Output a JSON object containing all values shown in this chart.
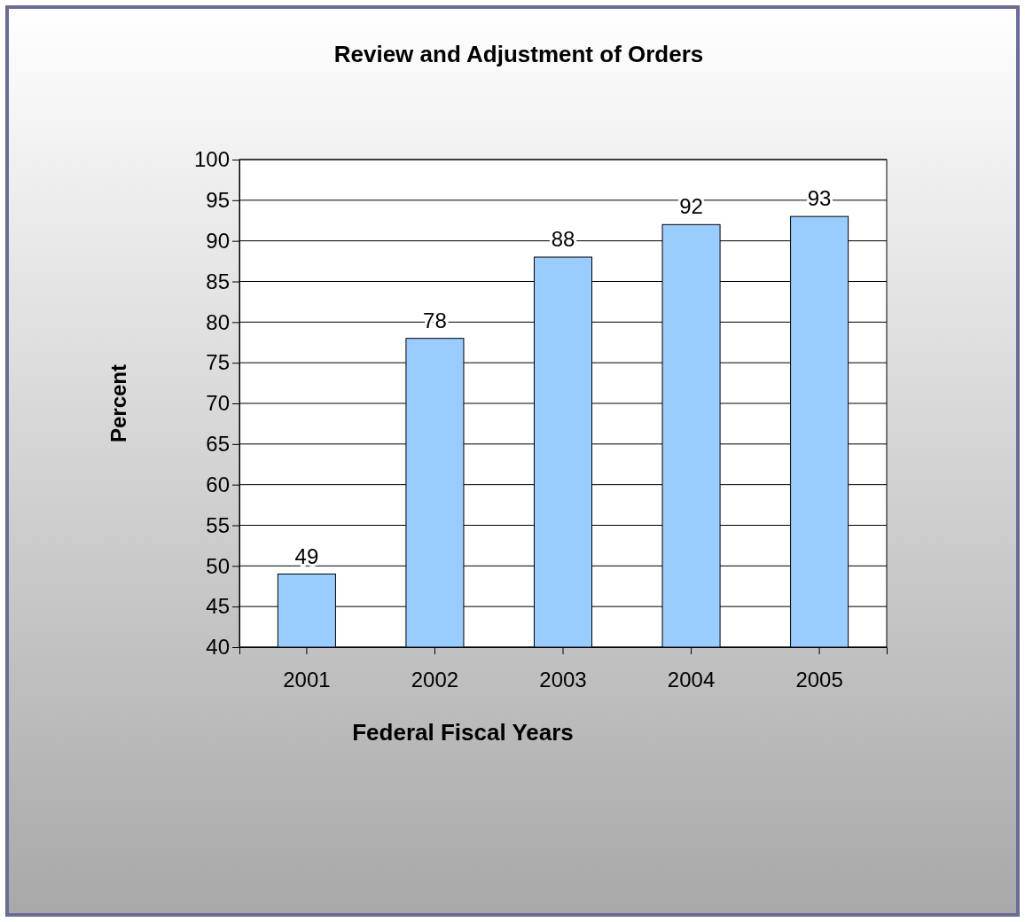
{
  "chart_data": {
    "type": "bar",
    "title": "Review and Adjustment of Orders",
    "xlabel": "Federal Fiscal Years",
    "ylabel": "Percent",
    "categories": [
      "2001",
      "2002",
      "2003",
      "2004",
      "2005"
    ],
    "values": [
      49,
      78,
      88,
      92,
      93
    ],
    "color": "#99ccff",
    "ylim": [
      40,
      100
    ],
    "yticks": [
      40,
      45,
      50,
      55,
      60,
      65,
      70,
      75,
      80,
      85,
      90,
      95,
      100
    ],
    "grid": "y",
    "data_labels": true
  }
}
